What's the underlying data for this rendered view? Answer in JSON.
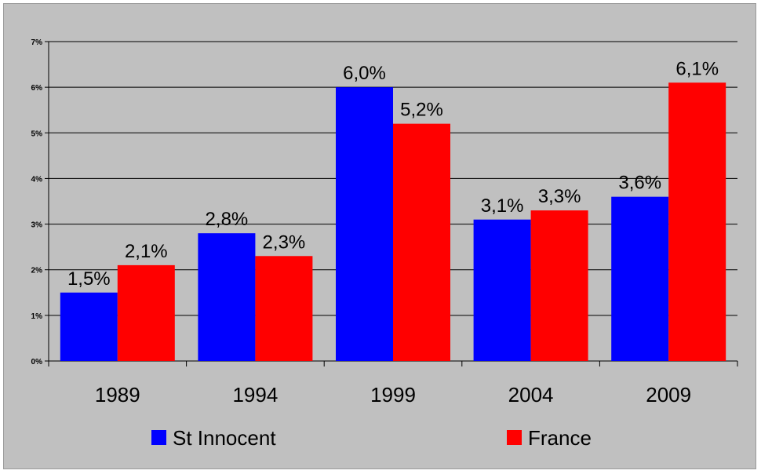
{
  "chart_data": {
    "type": "bar",
    "title": "",
    "xlabel": "",
    "ylabel": "",
    "categories": [
      "1989",
      "1994",
      "1999",
      "2004",
      "2009"
    ],
    "ylim": [
      0,
      7
    ],
    "y_ticks": [
      0,
      1,
      2,
      3,
      4,
      5,
      6,
      7
    ],
    "y_tick_labels": [
      "0%",
      "1%",
      "2%",
      "3%",
      "4%",
      "5%",
      "6%",
      "7%"
    ],
    "grid": true,
    "legend_position": "bottom",
    "series": [
      {
        "name": "St Innocent",
        "color": "#0000ff",
        "values": [
          1.5,
          2.8,
          6.0,
          3.1,
          3.6
        ],
        "labels": [
          "1,5%",
          "2,8%",
          "6,0%",
          "3,1%",
          "3,6%"
        ]
      },
      {
        "name": "France",
        "color": "#ff0000",
        "values": [
          2.1,
          2.3,
          5.2,
          3.3,
          6.1
        ],
        "labels": [
          "2,1%",
          "2,3%",
          "5,2%",
          "3,3%",
          "6,1%"
        ]
      }
    ]
  }
}
